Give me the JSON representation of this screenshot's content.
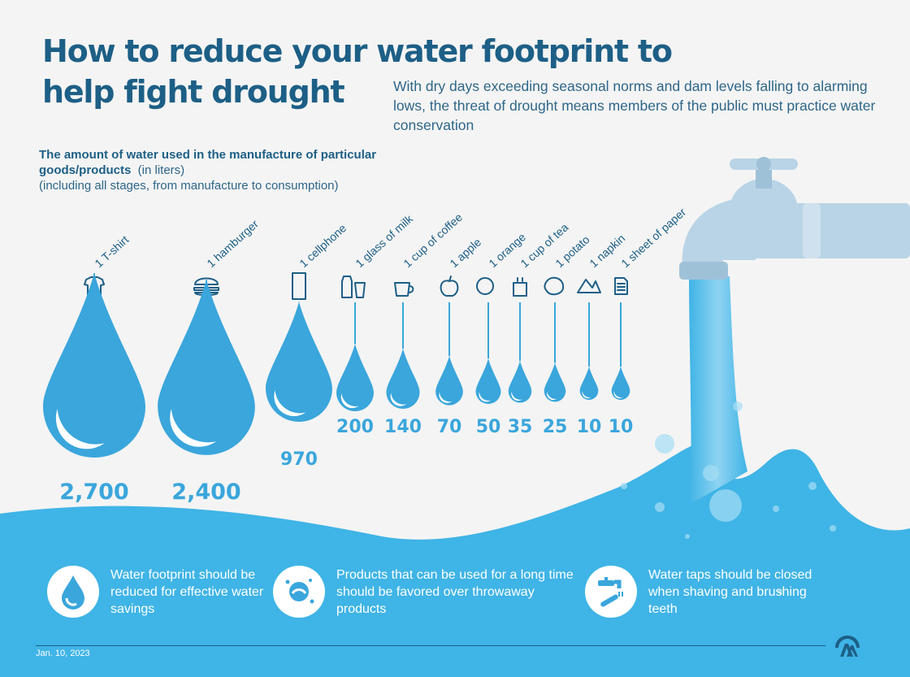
{
  "header": {
    "title": "How to reduce your water footprint to help fight drought",
    "subtitle": "With dry days exceeding seasonal norms and dam levels falling to alarming lows, the threat of drought means members of the public must practice water conservation"
  },
  "chart_data": {
    "type": "bar",
    "title": "The amount of water used in the manufacture of particular goods/products",
    "unit_note": "(in liters)",
    "note": "(including all stages, from manufacture to consumption)",
    "categories": [
      "1 T-shirt",
      "1 hamburger",
      "1 cellphone",
      "1 glass of milk",
      "1 cup of coffee",
      "1 apple",
      "1 orange",
      "1 cup of tea",
      "1 potato",
      "1 napkin",
      "1 sheet of paper"
    ],
    "values": [
      2700,
      2400,
      970,
      200,
      140,
      70,
      50,
      35,
      25,
      10,
      10
    ],
    "value_labels": [
      "2,700",
      "2,400",
      "970",
      "200",
      "140",
      "70",
      "50",
      "35",
      "25",
      "10",
      "10"
    ],
    "icons": [
      "tshirt-icon",
      "hamburger-icon",
      "cellphone-icon",
      "milk-icon",
      "coffee-icon",
      "apple-icon",
      "orange-icon",
      "tea-icon",
      "potato-icon",
      "napkin-icon",
      "paper-icon"
    ]
  },
  "tips": [
    {
      "text": "Water footprint should be reduced for effective water savings",
      "icon": "water-drop-icon"
    },
    {
      "text": "Products that can be used for a long time should be favored over throwaway products",
      "icon": "hand-washing-icon"
    },
    {
      "text": "Water taps should be closed when shaving and brushing teeth",
      "icon": "tap-brush-icon"
    }
  ],
  "footer": {
    "date": "Jan. 10, 2023",
    "logo": "aa-logo-icon"
  },
  "colors": {
    "title": "#1d5f86",
    "drop": "#3aa6dc",
    "water": "#3fb4e6",
    "tap": "#b9d4e6",
    "background": "#f4f4f4"
  }
}
